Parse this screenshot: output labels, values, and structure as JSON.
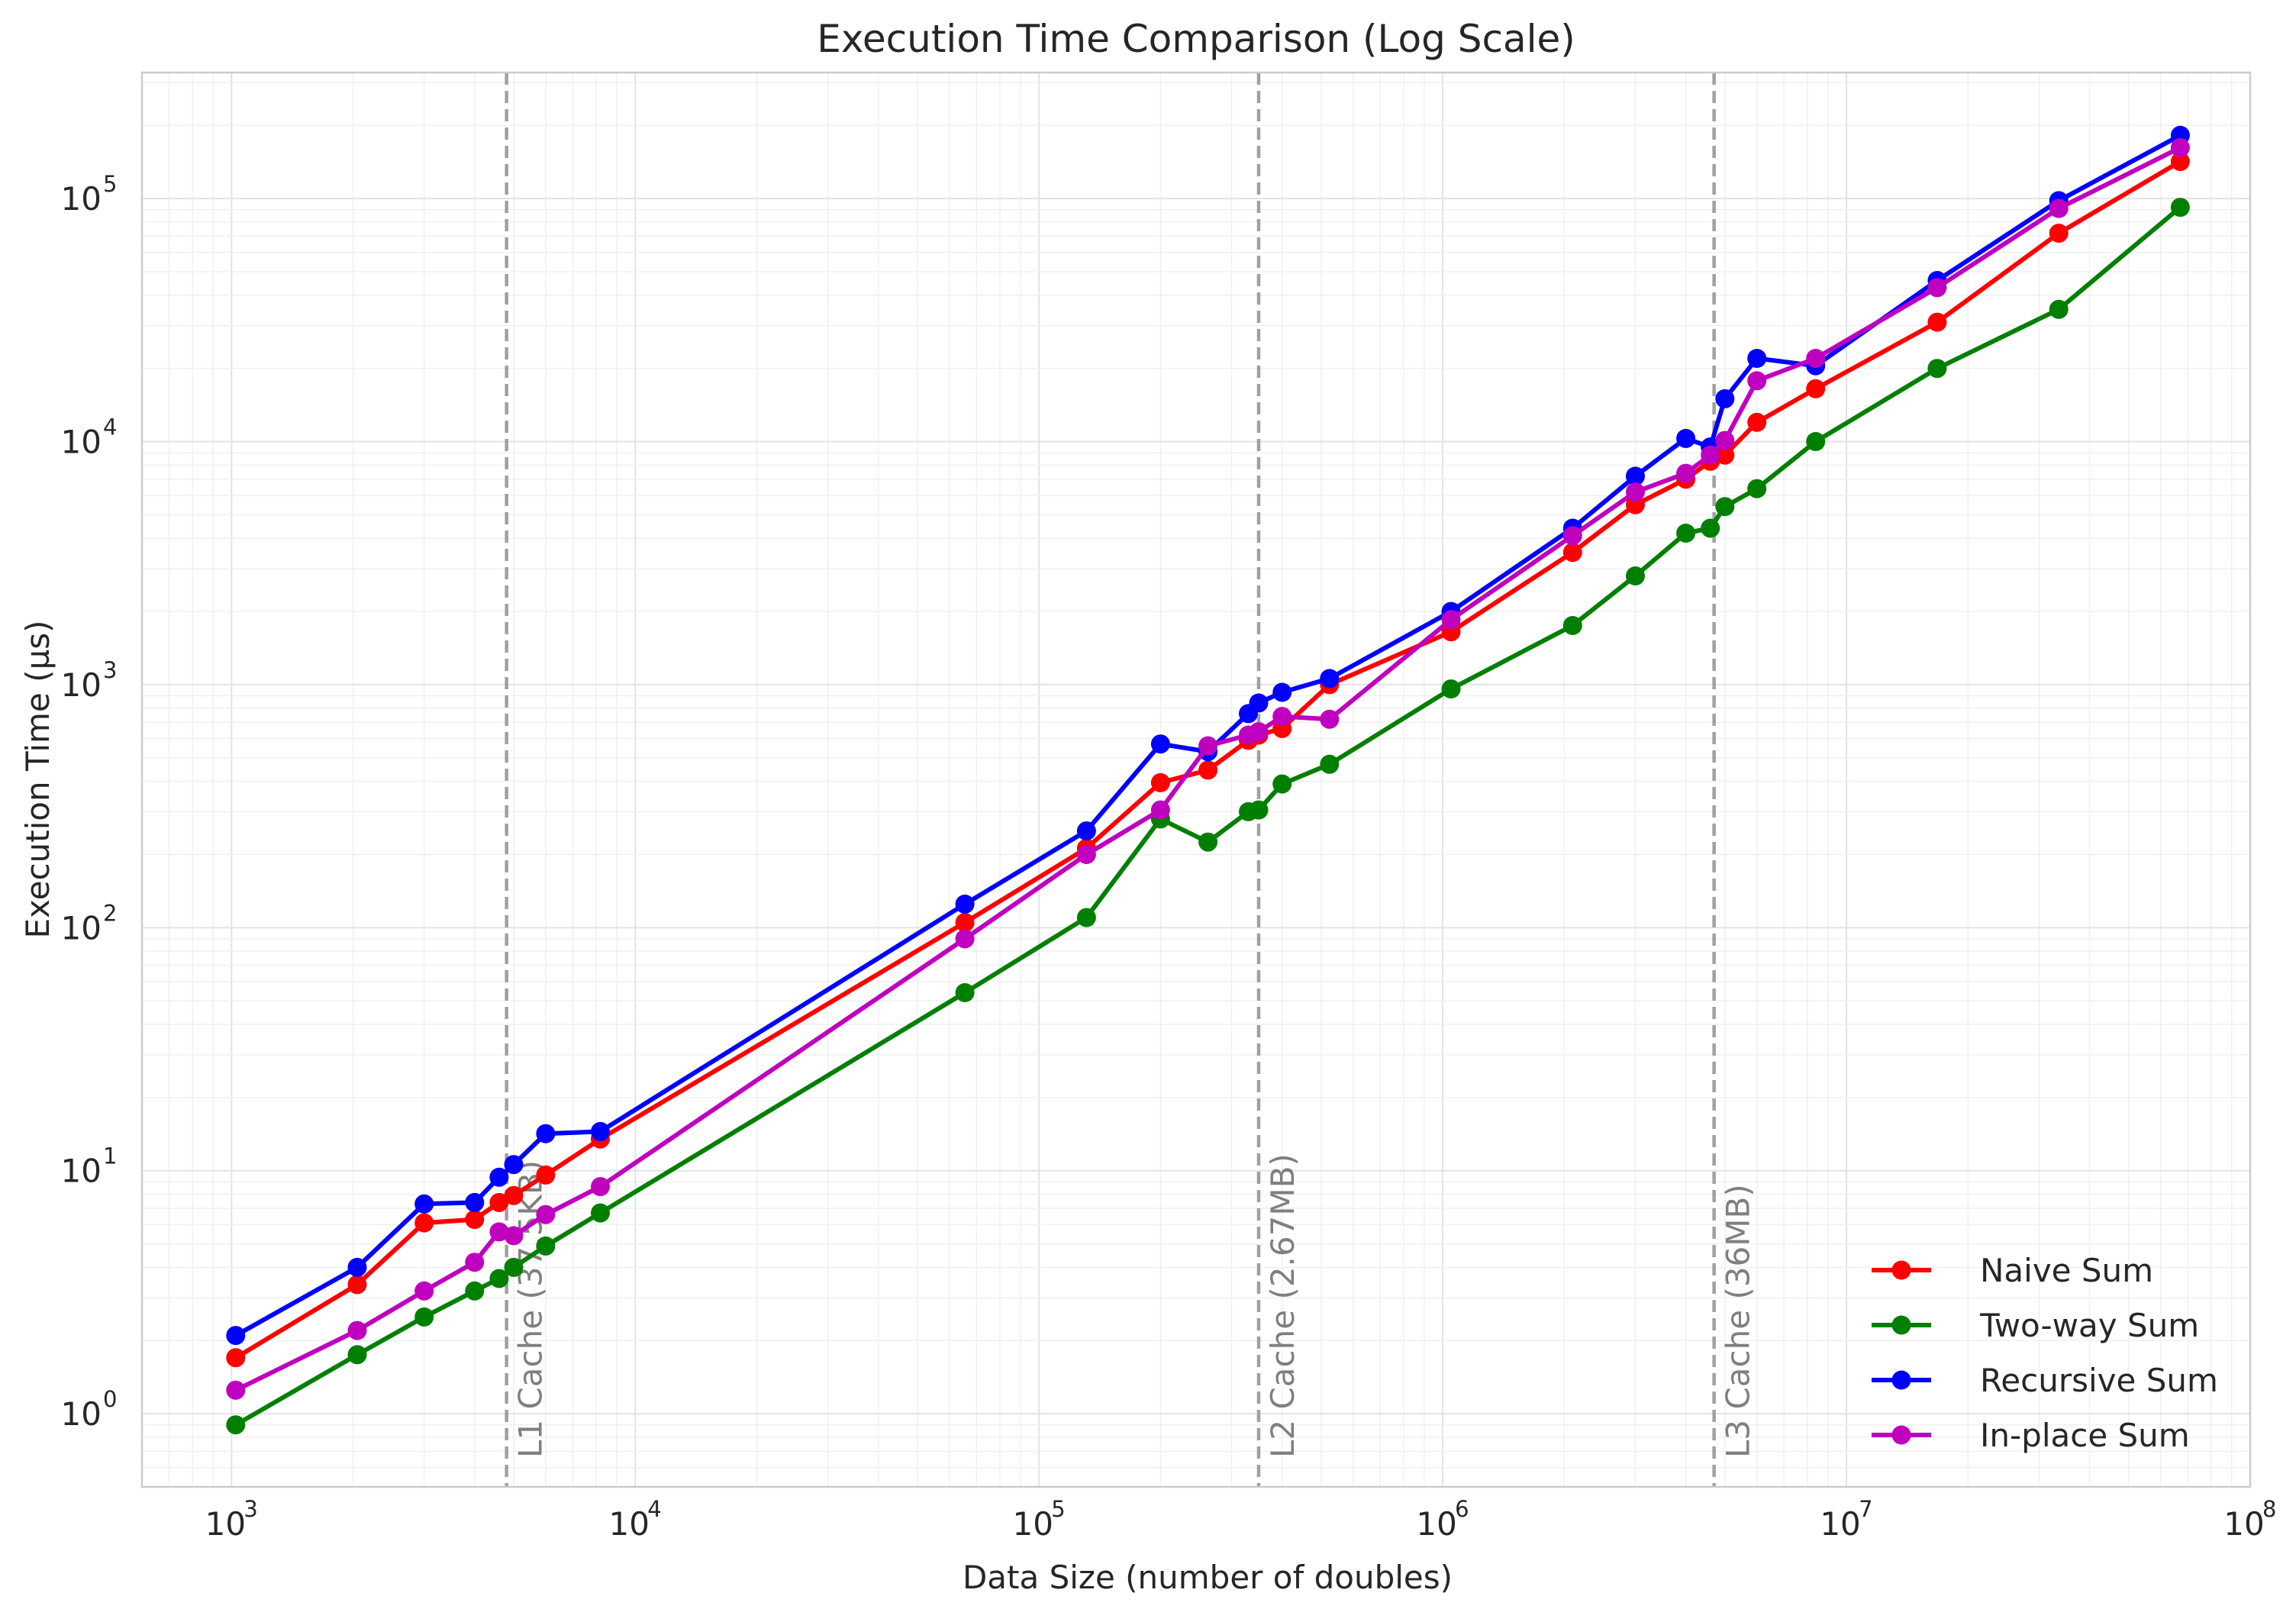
{
  "chart_data": {
    "type": "line",
    "title": "Execution Time Comparison (Log Scale)",
    "xlabel": "Data Size (number of doubles)",
    "ylabel": "Execution Time (µs)",
    "x_scale": "log",
    "y_scale": "log",
    "xlim": [
      600,
      100000000
    ],
    "ylim": [
      0.5,
      330000
    ],
    "grid": true,
    "legend_position": "lower-right",
    "x_ticks": [
      {
        "value": 1000,
        "base": "10",
        "exp": "3"
      },
      {
        "value": 10000,
        "base": "10",
        "exp": "4"
      },
      {
        "value": 100000,
        "base": "10",
        "exp": "5"
      },
      {
        "value": 1000000,
        "base": "10",
        "exp": "6"
      },
      {
        "value": 10000000,
        "base": "10",
        "exp": "7"
      },
      {
        "value": 100000000,
        "base": "10",
        "exp": "8"
      }
    ],
    "y_ticks": [
      {
        "value": 1,
        "base": "10",
        "exp": "0"
      },
      {
        "value": 10,
        "base": "10",
        "exp": "1"
      },
      {
        "value": 100,
        "base": "10",
        "exp": "2"
      },
      {
        "value": 1000,
        "base": "10",
        "exp": "3"
      },
      {
        "value": 10000,
        "base": "10",
        "exp": "4"
      },
      {
        "value": 100000,
        "base": "10",
        "exp": "5"
      }
    ],
    "vlines": [
      {
        "x": 4800,
        "label": "L1 Cache (37.5KB)"
      },
      {
        "x": 350000,
        "label": "L2 Cache (2.67MB)"
      },
      {
        "x": 4700000,
        "label": "L3 Cache (36MB)"
      }
    ],
    "x": [
      1024,
      2048,
      3000,
      4000,
      4600,
      5000,
      6000,
      8192,
      65536,
      131072,
      200000,
      262144,
      330000,
      350000,
      400000,
      524288,
      1048576,
      2097152,
      3000000,
      4000000,
      4600000,
      5000000,
      6000000,
      8388608,
      16777216,
      33554432,
      67108864
    ],
    "series": [
      {
        "name": "Naive Sum",
        "color": "#ff0000",
        "values": [
          1.7,
          3.4,
          6.1,
          6.3,
          7.4,
          7.9,
          9.6,
          13.5,
          105,
          212,
          395,
          445,
          590,
          620,
          660,
          1000,
          1650,
          3500,
          5500,
          7000,
          8300,
          8800,
          12000,
          16500,
          31000,
          72000,
          142000
        ]
      },
      {
        "name": "Two-way Sum",
        "color": "#007f00",
        "values": [
          0.9,
          1.75,
          2.5,
          3.2,
          3.6,
          4.0,
          4.9,
          6.7,
          54,
          110,
          280,
          225,
          300,
          305,
          390,
          470,
          960,
          1750,
          2800,
          4200,
          4400,
          5400,
          6400,
          10000,
          20000,
          35000,
          92000
        ]
      },
      {
        "name": "Recursive Sum",
        "color": "#0000ff",
        "values": [
          2.1,
          4.0,
          7.3,
          7.4,
          9.4,
          10.6,
          14.2,
          14.5,
          125,
          250,
          570,
          530,
          760,
          840,
          930,
          1060,
          2000,
          4400,
          7200,
          10300,
          9500,
          15000,
          22000,
          20500,
          46000,
          98000,
          182000
        ]
      },
      {
        "name": "In-place Sum",
        "color": "#bf00bf",
        "values": [
          1.25,
          2.2,
          3.2,
          4.2,
          5.6,
          5.4,
          6.6,
          8.6,
          90,
          200,
          305,
          560,
          620,
          640,
          740,
          720,
          1850,
          4100,
          6200,
          7400,
          8800,
          10100,
          17800,
          22000,
          43000,
          91000,
          162000
        ]
      }
    ]
  }
}
